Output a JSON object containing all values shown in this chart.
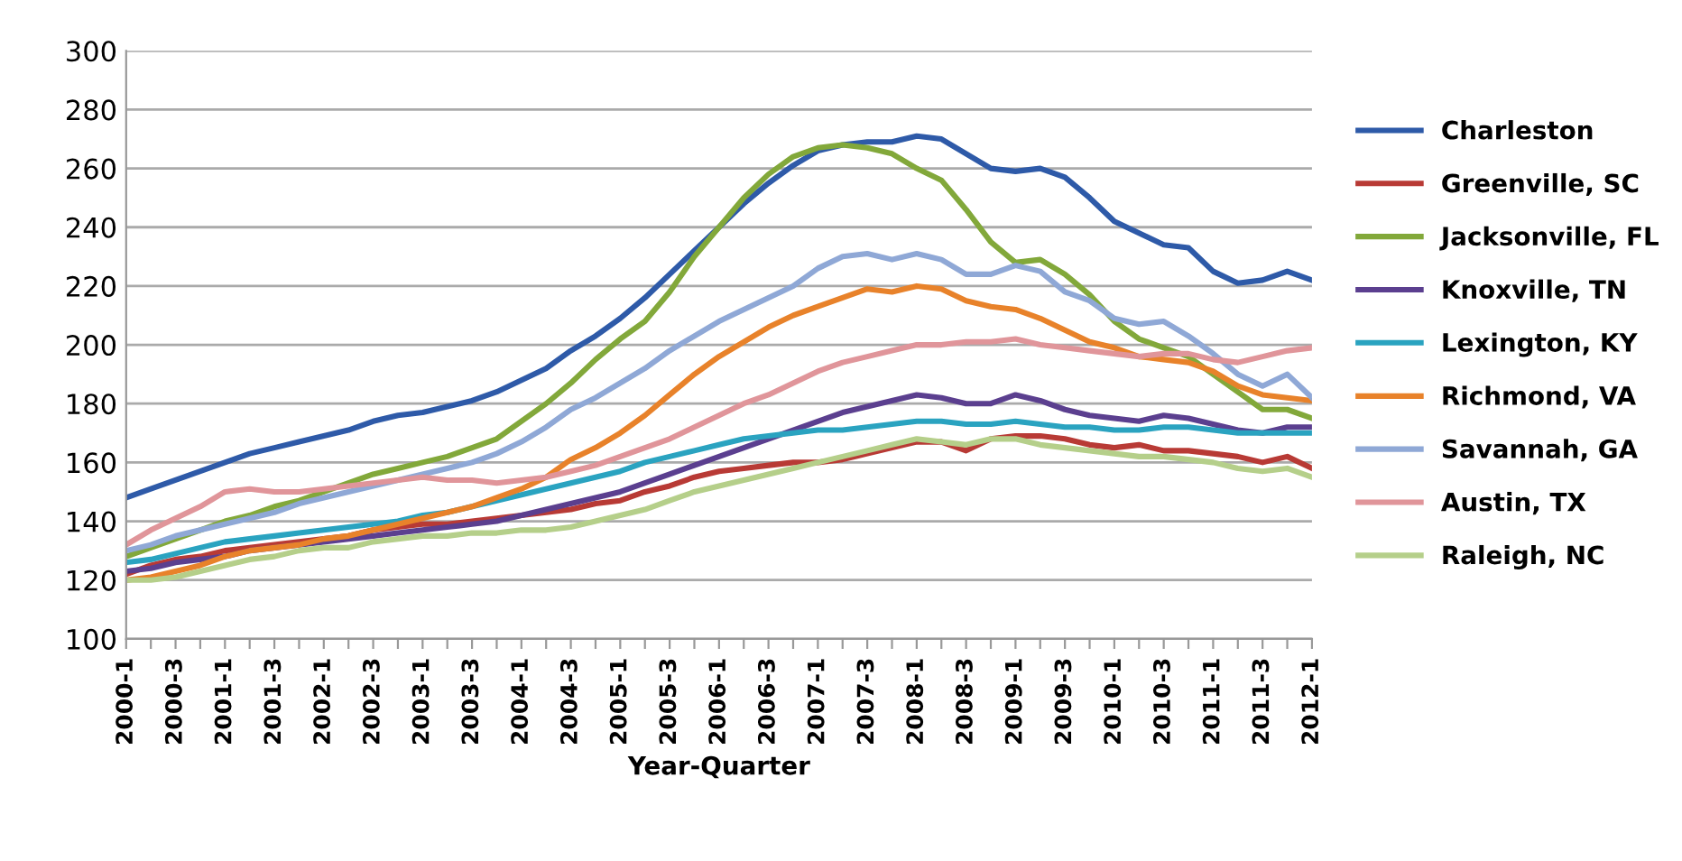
{
  "chart_data": {
    "type": "line",
    "xlabel": "Year-Quarter",
    "categories": [
      "2000-1",
      null,
      "2000-3",
      null,
      "2001-1",
      null,
      "2001-3",
      null,
      "2002-1",
      null,
      "2002-3",
      null,
      "2003-1",
      null,
      "2003-3",
      null,
      "2004-1",
      null,
      "2004-3",
      null,
      "2005-1",
      null,
      "2005-3",
      null,
      "2006-1",
      null,
      "2006-3",
      null,
      "2007-1",
      null,
      "2007-3",
      null,
      "2008-1",
      null,
      "2008-3",
      null,
      "2009-1",
      null,
      "2009-3",
      null,
      "2010-1",
      null,
      "2010-3",
      null,
      "2011-1",
      null,
      "2011-3",
      null,
      "2012-1"
    ],
    "ylim": [
      100,
      300
    ],
    "yticks": [
      100,
      120,
      140,
      160,
      180,
      200,
      220,
      240,
      260,
      280,
      300
    ],
    "grid": "y",
    "legend": "right",
    "marker": "none",
    "line_style": "solid",
    "series": [
      {
        "name": "Charleston",
        "color": "#2e5aa8",
        "values": [
          148,
          151,
          154,
          157,
          160,
          163,
          165,
          167,
          169,
          171,
          174,
          176,
          177,
          179,
          181,
          184,
          188,
          192,
          198,
          203,
          209,
          216,
          224,
          232,
          240,
          248,
          255,
          261,
          266,
          268,
          269,
          269,
          271,
          270,
          265,
          260,
          259,
          260,
          257,
          250,
          242,
          238,
          234,
          233,
          225,
          221,
          222,
          225,
          222
        ]
      },
      {
        "name": "Greenville, SC",
        "color": "#b83a35",
        "values": [
          122,
          125,
          127,
          128,
          130,
          131,
          132,
          133,
          134,
          135,
          137,
          138,
          139,
          139,
          140,
          141,
          142,
          143,
          144,
          146,
          147,
          150,
          152,
          155,
          157,
          158,
          159,
          160,
          160,
          161,
          163,
          165,
          167,
          167,
          164,
          168,
          169,
          169,
          168,
          166,
          165,
          166,
          164,
          164,
          163,
          162,
          160,
          162,
          158
        ]
      },
      {
        "name": "Jacksonville, FL",
        "color": "#82a83a",
        "values": [
          128,
          131,
          134,
          137,
          140,
          142,
          145,
          147,
          150,
          153,
          156,
          158,
          160,
          162,
          165,
          168,
          174,
          180,
          187,
          195,
          202,
          208,
          218,
          230,
          240,
          250,
          258,
          264,
          267,
          268,
          267,
          265,
          260,
          256,
          246,
          235,
          228,
          229,
          224,
          217,
          208,
          202,
          199,
          196,
          190,
          184,
          178,
          178,
          175
        ]
      },
      {
        "name": "Knoxville, TN",
        "color": "#5b3f8f",
        "values": [
          123,
          124,
          126,
          127,
          128,
          130,
          131,
          132,
          133,
          134,
          135,
          136,
          137,
          138,
          139,
          140,
          142,
          144,
          146,
          148,
          150,
          153,
          156,
          159,
          162,
          165,
          168,
          171,
          174,
          177,
          179,
          181,
          183,
          182,
          180,
          180,
          183,
          181,
          178,
          176,
          175,
          174,
          176,
          175,
          173,
          171,
          170,
          172,
          172
        ]
      },
      {
        "name": "Lexington, KY",
        "color": "#2aa3c0",
        "values": [
          126,
          127,
          129,
          131,
          133,
          134,
          135,
          136,
          137,
          138,
          139,
          140,
          142,
          143,
          145,
          147,
          149,
          151,
          153,
          155,
          157,
          160,
          162,
          164,
          166,
          168,
          169,
          170,
          171,
          171,
          172,
          173,
          174,
          174,
          173,
          173,
          174,
          173,
          172,
          172,
          171,
          171,
          172,
          172,
          171,
          170,
          170,
          170,
          170
        ]
      },
      {
        "name": "Richmond, VA",
        "color": "#e8822a",
        "values": [
          120,
          121,
          123,
          125,
          128,
          130,
          131,
          132,
          134,
          135,
          137,
          139,
          141,
          143,
          145,
          148,
          151,
          155,
          161,
          165,
          170,
          176,
          183,
          190,
          196,
          201,
          206,
          210,
          213,
          216,
          219,
          218,
          220,
          219,
          215,
          213,
          212,
          209,
          205,
          201,
          199,
          196,
          195,
          194,
          191,
          186,
          183,
          182,
          181
        ]
      },
      {
        "name": "Savannah, GA",
        "color": "#8fa8d6",
        "values": [
          130,
          132,
          135,
          137,
          139,
          141,
          143,
          146,
          148,
          150,
          152,
          154,
          156,
          158,
          160,
          163,
          167,
          172,
          178,
          182,
          187,
          192,
          198,
          203,
          208,
          212,
          216,
          220,
          226,
          230,
          231,
          229,
          231,
          229,
          224,
          224,
          227,
          225,
          218,
          215,
          209,
          207,
          208,
          203,
          197,
          190,
          186,
          190,
          182
        ]
      },
      {
        "name": "Austin, TX",
        "color": "#e0959a",
        "values": [
          132,
          137,
          141,
          145,
          150,
          151,
          150,
          150,
          151,
          152,
          153,
          154,
          155,
          154,
          154,
          153,
          154,
          155,
          157,
          159,
          162,
          165,
          168,
          172,
          176,
          180,
          183,
          187,
          191,
          194,
          196,
          198,
          200,
          200,
          201,
          201,
          202,
          200,
          199,
          198,
          197,
          196,
          197,
          197,
          195,
          194,
          196,
          198,
          199
        ]
      },
      {
        "name": "Raleigh, NC",
        "color": "#b5cf8a",
        "values": [
          120,
          120,
          121,
          123,
          125,
          127,
          128,
          130,
          131,
          131,
          133,
          134,
          135,
          135,
          136,
          136,
          137,
          137,
          138,
          140,
          142,
          144,
          147,
          150,
          152,
          154,
          156,
          158,
          160,
          162,
          164,
          166,
          168,
          167,
          166,
          168,
          168,
          166,
          165,
          164,
          163,
          162,
          162,
          161,
          160,
          158,
          157,
          158,
          155
        ]
      }
    ]
  }
}
